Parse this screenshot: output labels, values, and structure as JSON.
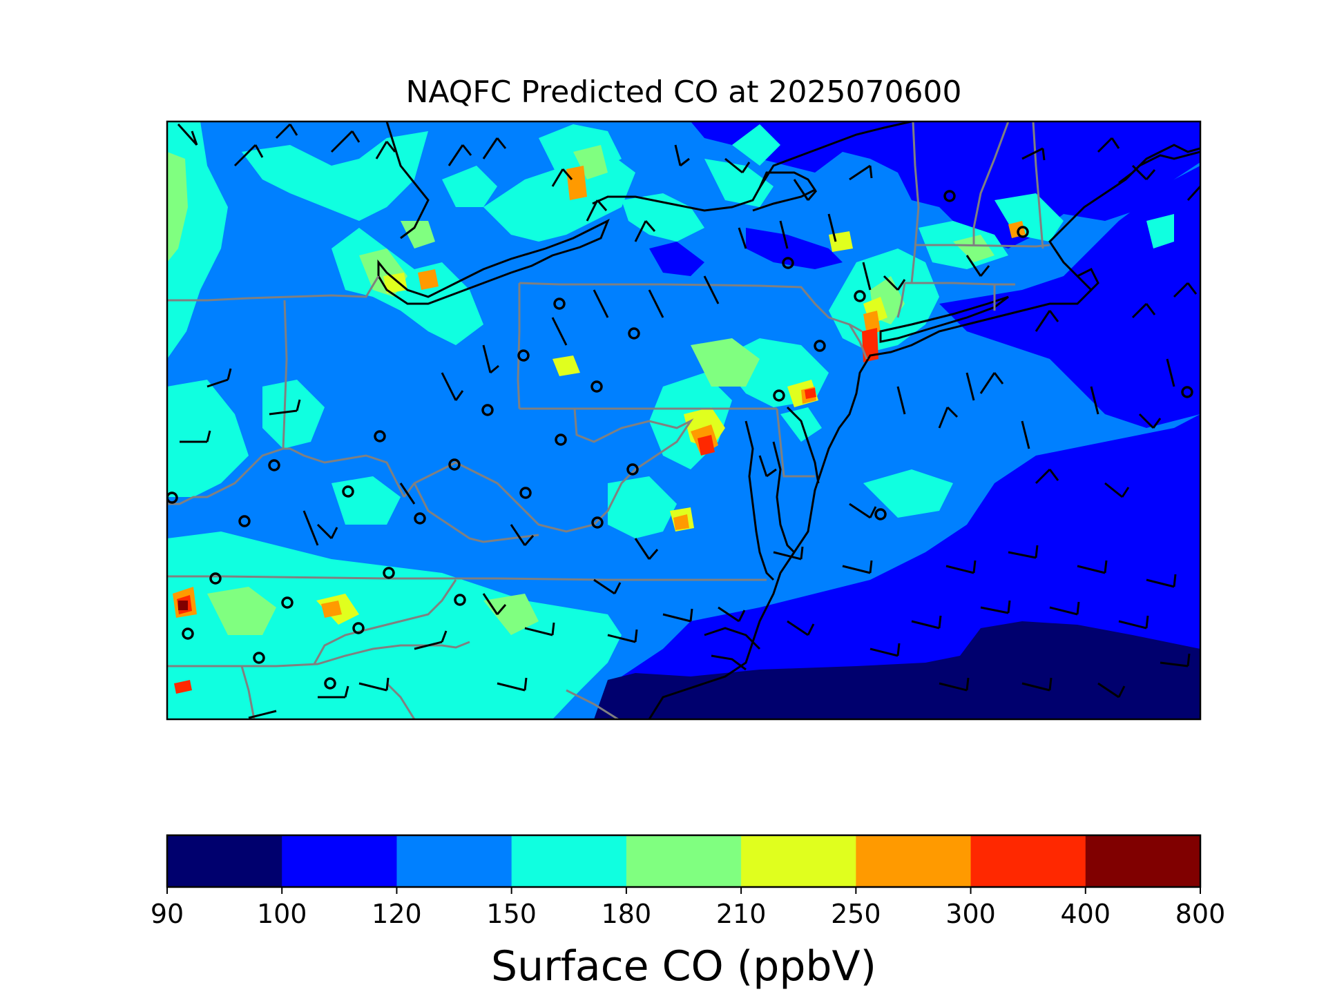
{
  "title": "NAQFC Predicted CO at 2025070600",
  "colorbar": {
    "label": "Surface CO (ppbV)",
    "ticks": [
      "90",
      "100",
      "120",
      "150",
      "180",
      "210",
      "250",
      "300",
      "400",
      "800"
    ],
    "colors": [
      "#00006e",
      "#0000ff",
      "#0080ff",
      "#10ffe0",
      "#80ff80",
      "#e0ff1e",
      "#ff9a00",
      "#ff2800",
      "#800000"
    ]
  },
  "map": {
    "region": "Northeastern United States",
    "colors": {
      "background": "#0080ff",
      "coastline": "#000000",
      "state_border": "#808080",
      "wind_barb": "#000000",
      "station_marker": "#000000"
    }
  }
}
